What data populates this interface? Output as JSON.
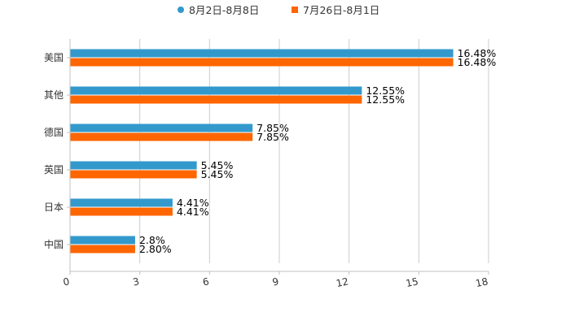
{
  "chart_data": {
    "type": "bar",
    "orientation": "horizontal",
    "title": "",
    "xlabel": "",
    "ylabel": "",
    "xlim": [
      0,
      18
    ],
    "x_ticks": [
      0,
      3,
      6,
      9,
      12,
      15,
      18
    ],
    "grid": true,
    "legend_position": "top-center",
    "categories": [
      "美国",
      "其他",
      "德国",
      "英国",
      "日本",
      "中国"
    ],
    "series": [
      {
        "name": "8月2日-8月8日",
        "color": "#3399cc",
        "marker": "circle",
        "values": [
          16.48,
          12.55,
          7.85,
          5.45,
          4.41,
          2.8
        ],
        "labels": [
          "16.48%",
          "12.55%",
          "7.85%",
          "5.45%",
          "4.41%",
          "2.8%"
        ]
      },
      {
        "name": "7月26日-8月1日",
        "color": "#ff6600",
        "marker": "square",
        "values": [
          16.48,
          12.55,
          7.85,
          5.45,
          4.41,
          2.8
        ],
        "labels": [
          "16.48%",
          "12.55%",
          "7.85%",
          "5.45%",
          "4.41%",
          "2.80%"
        ]
      }
    ]
  }
}
